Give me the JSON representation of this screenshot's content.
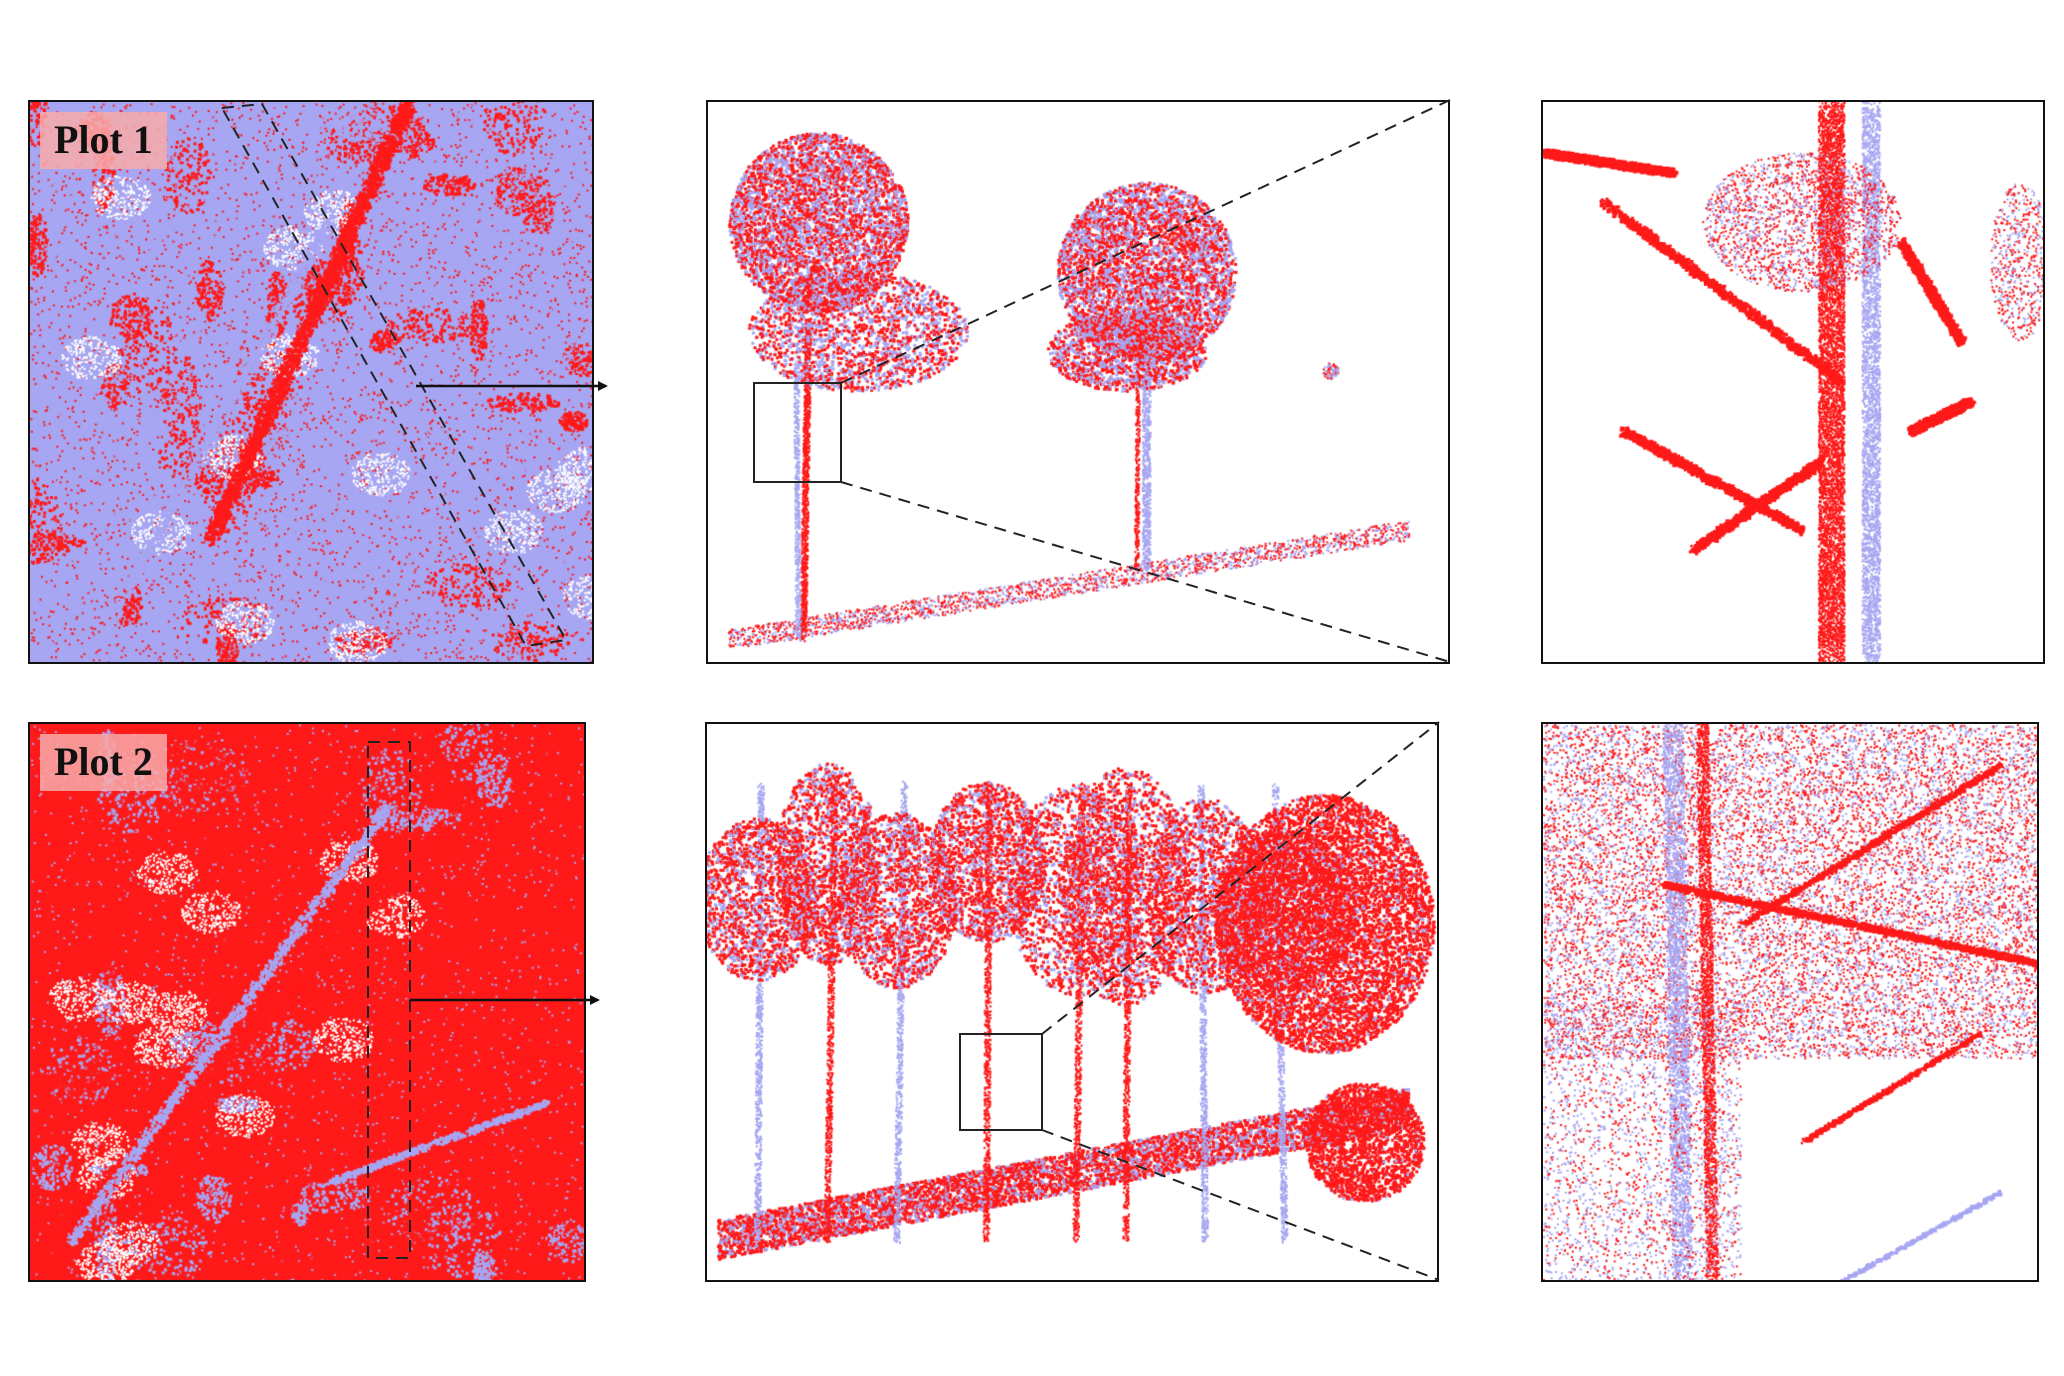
{
  "figure": {
    "colors": {
      "red": "#ff1a1a",
      "lavender": "#a7a6f2",
      "label_bg": "#f8aaaa",
      "border": "#111111"
    },
    "rows": [
      {
        "label": "Plot 1",
        "panels": [
          {
            "name": "plot1-top-view",
            "view": "top-view",
            "red_share": 0.45
          },
          {
            "name": "plot1-side-view",
            "view": "side-view",
            "red_share": 0.55
          },
          {
            "name": "plot1-zoom-view",
            "view": "zoom-view",
            "red_share": 0.6
          }
        ]
      },
      {
        "label": "Plot 2",
        "panels": [
          {
            "name": "plot2-top-view",
            "view": "top-view",
            "red_share": 0.8
          },
          {
            "name": "plot2-side-view",
            "view": "side-view",
            "red_share": 0.7
          },
          {
            "name": "plot2-zoom-view",
            "view": "zoom-view",
            "red_share": 0.65
          }
        ]
      }
    ]
  }
}
